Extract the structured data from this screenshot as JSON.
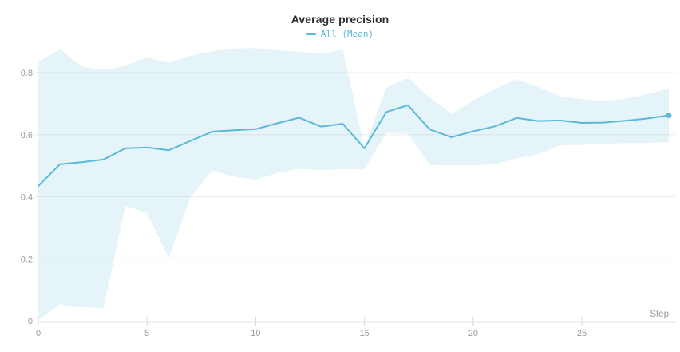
{
  "panel": {
    "title": "Average precision",
    "legend": {
      "label": "All (Mean)"
    }
  },
  "axes": {
    "x_label": "Step",
    "x_tick_labels": [
      "0",
      "5",
      "10",
      "15",
      "20",
      "25"
    ],
    "x_tick_values": [
      0,
      5,
      10,
      15,
      20,
      25
    ],
    "y_tick_labels": [
      "0",
      "0.2",
      "0.4",
      "0.6",
      "0.8"
    ],
    "y_tick_values": [
      0,
      0.2,
      0.4,
      0.6,
      0.8
    ]
  },
  "colors": {
    "line": "#5bb9d8",
    "band_fill": "rgba(91,185,216,0.16)",
    "grid": "#ededed",
    "axis": "#e3e3e3",
    "tick": "#d8d8d8",
    "tick_label": "#9a9a9a",
    "title": "#2b2b2b"
  },
  "chart_data": {
    "type": "line",
    "title": "Average precision",
    "xlabel": "Step",
    "ylabel": "",
    "legend_position": "top-center",
    "grid": "horizontal",
    "xlim": [
      0,
      29
    ],
    "ylim": [
      0,
      0.88
    ],
    "last_point_marker": true,
    "x": [
      0,
      1,
      2,
      3,
      4,
      5,
      6,
      7,
      8,
      9,
      10,
      11,
      12,
      13,
      14,
      15,
      16,
      17,
      18,
      19,
      20,
      21,
      22,
      23,
      24,
      25,
      26,
      27,
      28,
      29
    ],
    "series": [
      {
        "name": "All (Mean)",
        "values": [
          0.435,
          0.505,
          0.511,
          0.52,
          0.556,
          0.559,
          0.55,
          0.58,
          0.61,
          0.614,
          0.618,
          0.637,
          0.655,
          0.626,
          0.635,
          0.556,
          0.673,
          0.695,
          0.617,
          0.592,
          0.611,
          0.627,
          0.654,
          0.644,
          0.646,
          0.638,
          0.639,
          0.645,
          0.652,
          0.662
        ]
      }
    ],
    "band": {
      "name": "All (min/max range)",
      "upper": [
        0.835,
        0.876,
        0.819,
        0.808,
        0.822,
        0.848,
        0.832,
        0.854,
        0.869,
        0.878,
        0.879,
        0.872,
        0.867,
        0.86,
        0.875,
        0.558,
        0.752,
        0.783,
        0.72,
        0.667,
        0.71,
        0.748,
        0.778,
        0.753,
        0.724,
        0.714,
        0.709,
        0.716,
        0.73,
        0.75
      ],
      "lower": [
        0.002,
        0.053,
        0.045,
        0.04,
        0.371,
        0.347,
        0.203,
        0.4,
        0.484,
        0.465,
        0.455,
        0.477,
        0.49,
        0.486,
        0.489,
        0.489,
        0.605,
        0.604,
        0.502,
        0.501,
        0.501,
        0.505,
        0.524,
        0.537,
        0.566,
        0.567,
        0.57,
        0.573,
        0.573,
        0.576
      ]
    }
  }
}
